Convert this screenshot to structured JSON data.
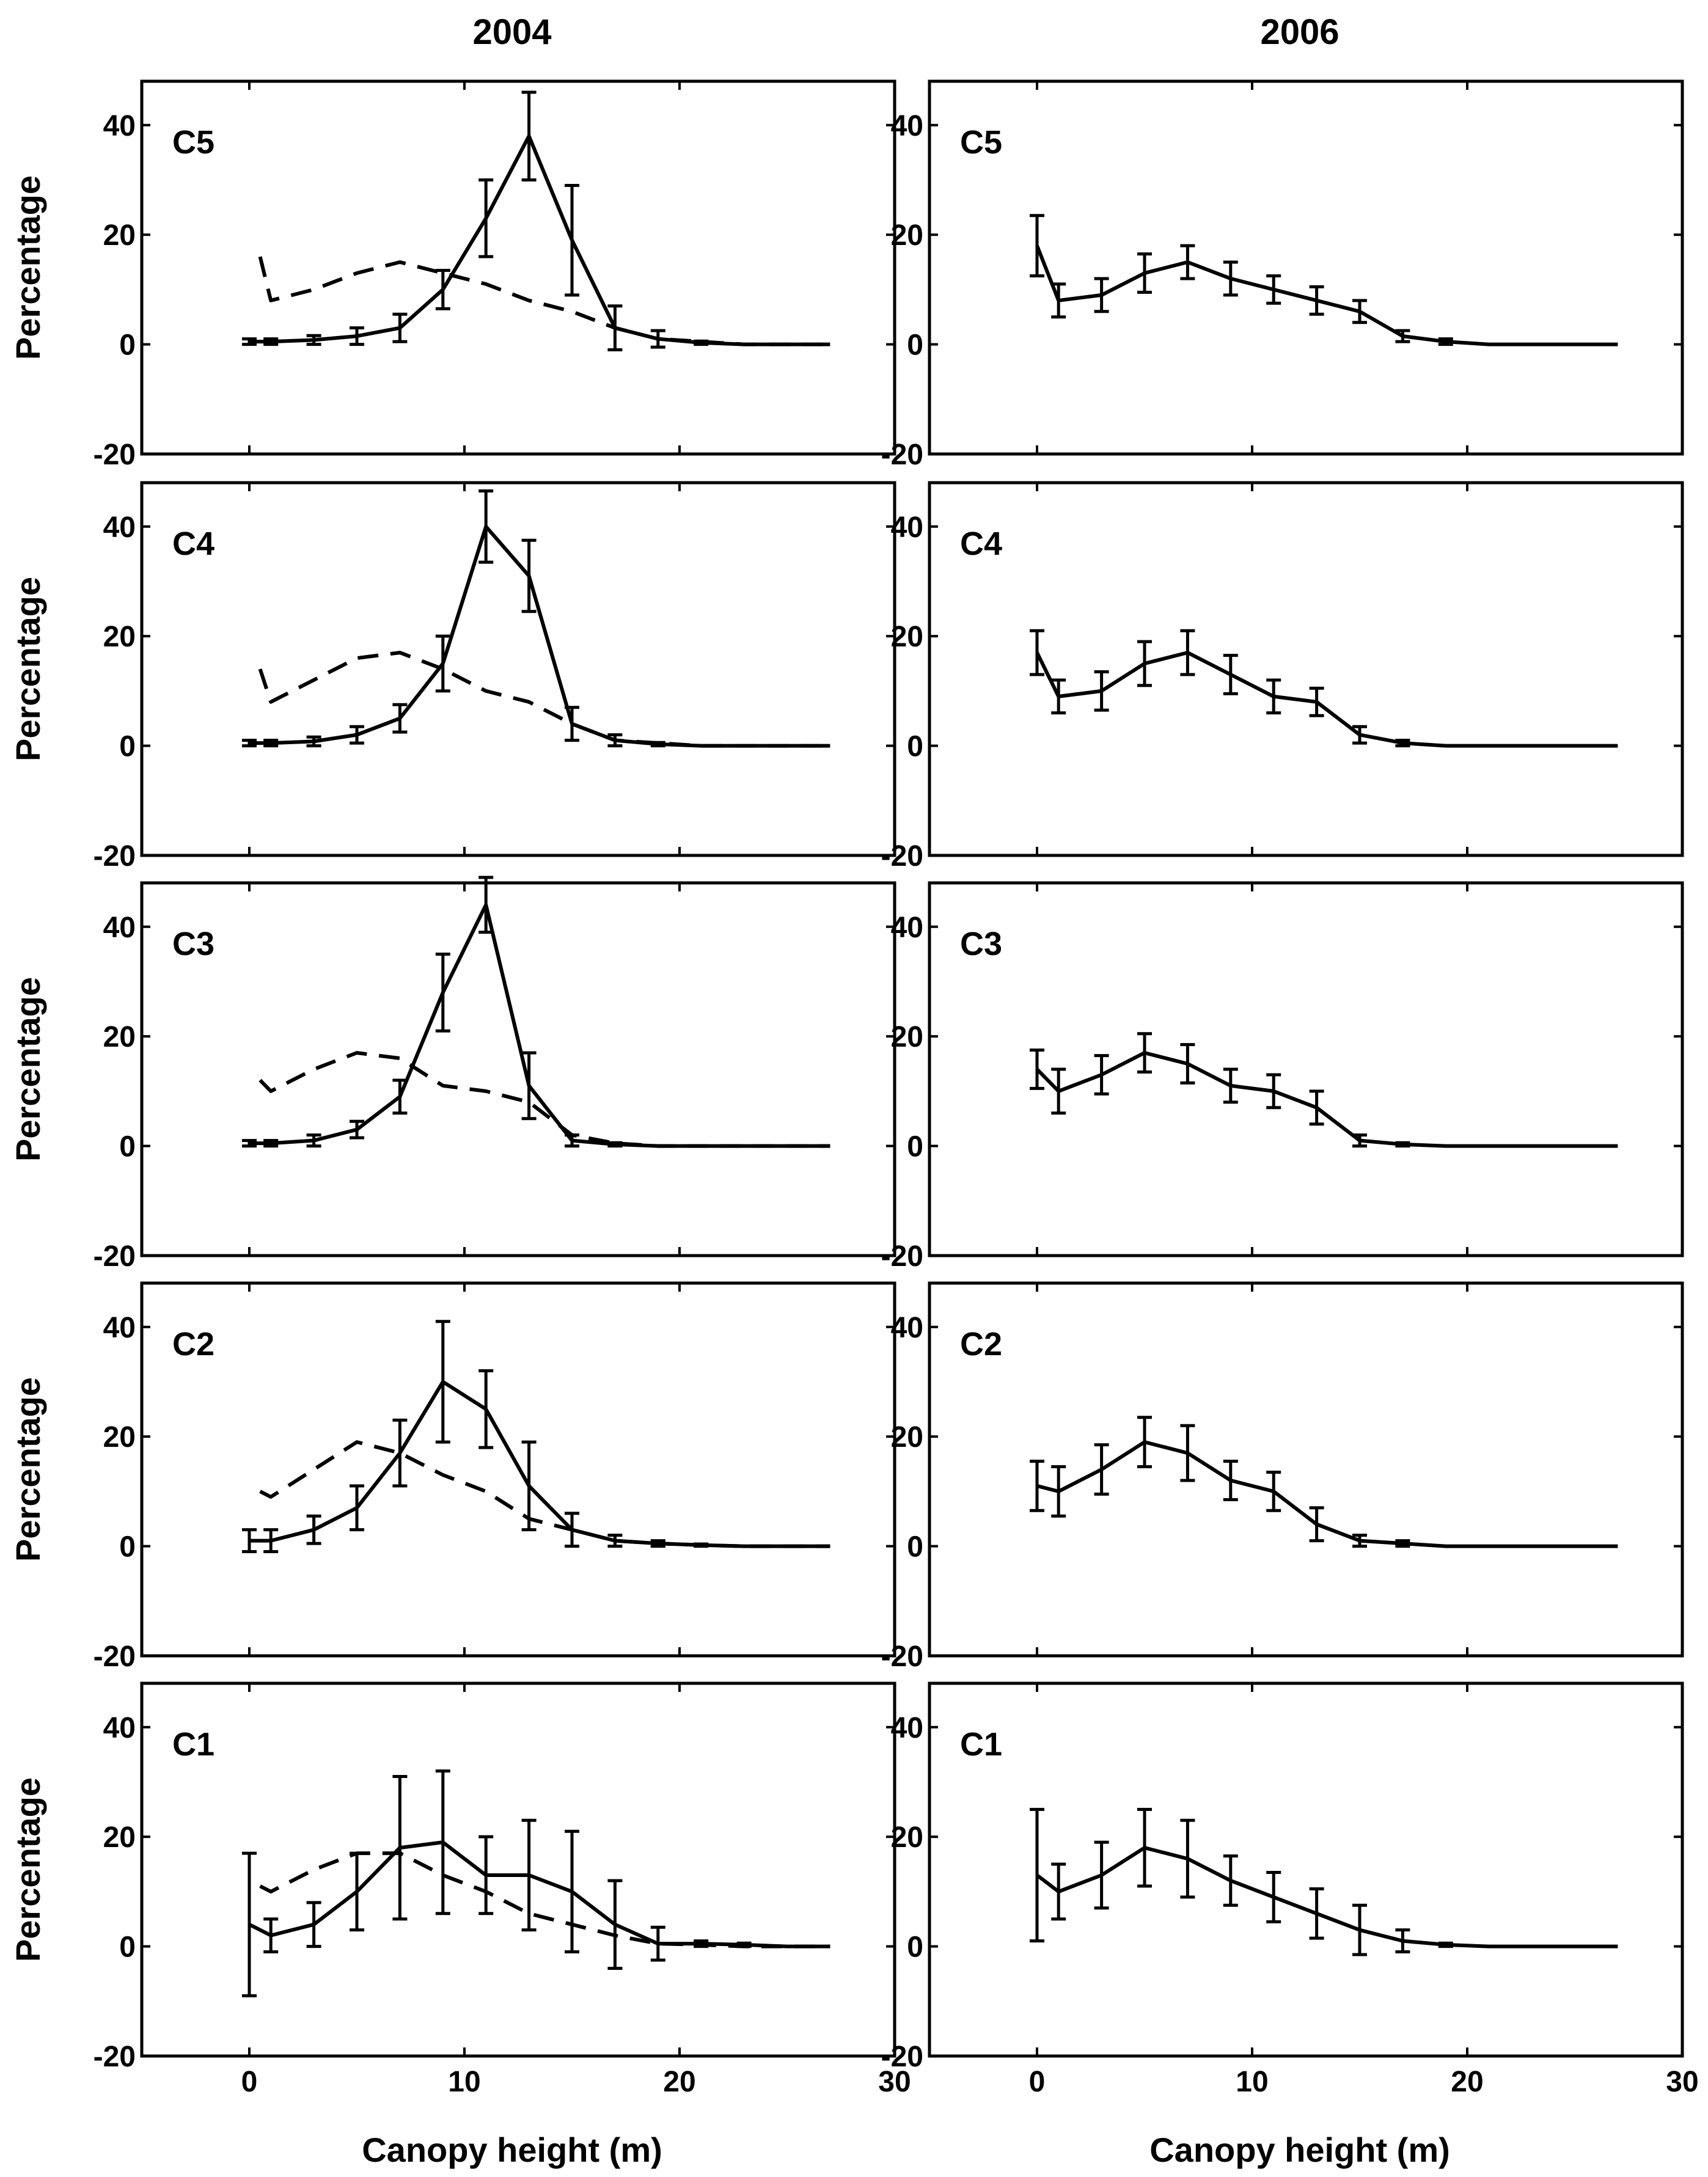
{
  "column_titles": [
    "2004",
    "2006"
  ],
  "panel_labels": [
    "C5",
    "C4",
    "C3",
    "C2",
    "C1"
  ],
  "xlabel": "Canopy height (m)",
  "ylabel": "Percentage",
  "axes": {
    "xlim": [
      -5,
      30
    ],
    "ylim": [
      -20,
      48
    ],
    "xticks": [
      0,
      10,
      20,
      30
    ],
    "yticks": [
      -20,
      0,
      20,
      40
    ],
    "grid": false
  },
  "chart_data": [
    {
      "type": "line",
      "panel": "C5",
      "column": "2004",
      "series": [
        {
          "style": "solid",
          "x": [
            0,
            1,
            3,
            5,
            7,
            9,
            11,
            13,
            15,
            17,
            19,
            21,
            23,
            25,
            27
          ],
          "y": [
            0.5,
            0.5,
            0.8,
            1.5,
            3,
            10,
            23,
            38,
            19,
            3,
            1,
            0.3,
            0,
            0,
            0
          ],
          "err": [
            0.5,
            0.5,
            0.8,
            1.5,
            2.5,
            3.5,
            7,
            8,
            10,
            4,
            1.5,
            0.3,
            0,
            0,
            0
          ]
        },
        {
          "style": "dashed",
          "x": [
            0.5,
            1,
            3,
            5,
            7,
            9,
            11,
            13,
            15,
            17,
            19,
            21,
            23,
            25,
            27
          ],
          "y": [
            16,
            8,
            10,
            13,
            15,
            13,
            11,
            8,
            6,
            3,
            1,
            0.5,
            0,
            0,
            0
          ]
        }
      ]
    },
    {
      "type": "line",
      "panel": "C5",
      "column": "2006",
      "series": [
        {
          "style": "solid",
          "x": [
            0,
            1,
            3,
            5,
            7,
            9,
            11,
            13,
            15,
            17,
            19,
            21,
            23,
            25,
            27
          ],
          "y": [
            18,
            8,
            9,
            13,
            15,
            12,
            10,
            8,
            6,
            1.5,
            0.5,
            0,
            0,
            0,
            0
          ],
          "err": [
            5.5,
            3,
            3,
            3.5,
            3,
            3,
            2.5,
            2.5,
            2,
            1,
            0.5,
            0,
            0,
            0,
            0
          ]
        }
      ]
    },
    {
      "type": "line",
      "panel": "C4",
      "column": "2004",
      "series": [
        {
          "style": "solid",
          "x": [
            0,
            1,
            3,
            5,
            7,
            9,
            11,
            13,
            15,
            17,
            19,
            21,
            23,
            25,
            27
          ],
          "y": [
            0.5,
            0.5,
            0.8,
            2,
            5,
            15,
            40,
            31,
            4,
            1,
            0.3,
            0,
            0,
            0,
            0
          ],
          "err": [
            0.5,
            0.5,
            0.8,
            1.5,
            2.5,
            5,
            6.5,
            6.5,
            3,
            1,
            0.3,
            0,
            0,
            0,
            0
          ]
        },
        {
          "style": "dashed",
          "x": [
            0.5,
            1,
            3,
            5,
            7,
            9,
            11,
            13,
            15,
            17,
            19,
            21,
            23,
            25,
            27
          ],
          "y": [
            14,
            8,
            12,
            16,
            17,
            14,
            10,
            8,
            4,
            1,
            0.5,
            0,
            0,
            0,
            0
          ]
        }
      ]
    },
    {
      "type": "line",
      "panel": "C4",
      "column": "2006",
      "series": [
        {
          "style": "solid",
          "x": [
            0,
            1,
            3,
            5,
            7,
            9,
            11,
            13,
            15,
            17,
            19,
            21,
            23,
            25,
            27
          ],
          "y": [
            17,
            9,
            10,
            15,
            17,
            13,
            9,
            8,
            2,
            0.5,
            0,
            0,
            0,
            0,
            0
          ],
          "err": [
            4,
            3,
            3.5,
            4,
            4,
            3.5,
            3,
            2.5,
            1.5,
            0.5,
            0,
            0,
            0,
            0,
            0
          ]
        }
      ]
    },
    {
      "type": "line",
      "panel": "C3",
      "column": "2004",
      "series": [
        {
          "style": "solid",
          "x": [
            0,
            1,
            3,
            5,
            7,
            9,
            11,
            13,
            15,
            17,
            19,
            21,
            23,
            25,
            27
          ],
          "y": [
            0.5,
            0.5,
            1,
            3,
            9,
            28,
            44,
            11,
            1,
            0.3,
            0,
            0,
            0,
            0,
            0
          ],
          "err": [
            0.5,
            0.5,
            1,
            1.5,
            3,
            7,
            5,
            6,
            1,
            0.3,
            0,
            0,
            0,
            0,
            0
          ]
        },
        {
          "style": "dashed",
          "x": [
            0.5,
            1,
            3,
            5,
            7,
            9,
            11,
            13,
            15,
            17,
            19,
            21,
            23,
            25,
            27
          ],
          "y": [
            12,
            10,
            14,
            17,
            16,
            11,
            10,
            8,
            2,
            0.5,
            0,
            0,
            0,
            0,
            0
          ]
        }
      ]
    },
    {
      "type": "line",
      "panel": "C3",
      "column": "2006",
      "series": [
        {
          "style": "solid",
          "x": [
            0,
            1,
            3,
            5,
            7,
            9,
            11,
            13,
            15,
            17,
            19,
            21,
            23,
            25,
            27
          ],
          "y": [
            14,
            10,
            13,
            17,
            15,
            11,
            10,
            7,
            1,
            0.3,
            0,
            0,
            0,
            0,
            0
          ],
          "err": [
            3.5,
            4,
            3.5,
            3.5,
            3.5,
            3,
            3,
            3,
            1,
            0.3,
            0,
            0,
            0,
            0,
            0
          ]
        }
      ]
    },
    {
      "type": "line",
      "panel": "C2",
      "column": "2004",
      "series": [
        {
          "style": "solid",
          "x": [
            0,
            1,
            3,
            5,
            7,
            9,
            11,
            13,
            15,
            17,
            19,
            21,
            23,
            25,
            27
          ],
          "y": [
            1,
            1,
            3,
            7,
            17,
            30,
            25,
            11,
            3,
            1,
            0.5,
            0.2,
            0,
            0,
            0
          ],
          "err": [
            2,
            2,
            2.5,
            4,
            6,
            11,
            7,
            8,
            3,
            1,
            0.5,
            0.2,
            0,
            0,
            0
          ]
        },
        {
          "style": "dashed",
          "x": [
            0.5,
            1,
            3,
            5,
            7,
            9,
            11,
            13,
            15,
            17,
            19,
            21,
            23,
            25,
            27
          ],
          "y": [
            10,
            9,
            14,
            19,
            17,
            13,
            10,
            5,
            3,
            1,
            0.5,
            0.2,
            0,
            0,
            0
          ]
        }
      ]
    },
    {
      "type": "line",
      "panel": "C2",
      "column": "2006",
      "series": [
        {
          "style": "solid",
          "x": [
            0,
            1,
            3,
            5,
            7,
            9,
            11,
            13,
            15,
            17,
            19,
            21,
            23,
            25,
            27
          ],
          "y": [
            11,
            10,
            14,
            19,
            17,
            12,
            10,
            4,
            1,
            0.5,
            0,
            0,
            0,
            0,
            0
          ],
          "err": [
            4.5,
            4.5,
            4.5,
            4.5,
            5,
            3.5,
            3.5,
            3,
            1,
            0.5,
            0,
            0,
            0,
            0,
            0
          ]
        }
      ]
    },
    {
      "type": "line",
      "panel": "C1",
      "column": "2004",
      "series": [
        {
          "style": "solid",
          "x": [
            0,
            1,
            3,
            5,
            7,
            9,
            11,
            13,
            15,
            17,
            19,
            21,
            23,
            25,
            27
          ],
          "y": [
            4,
            2,
            4,
            10,
            18,
            19,
            13,
            13,
            10,
            4,
            0.5,
            0.5,
            0.3,
            0,
            0
          ],
          "err": [
            13,
            3,
            4,
            7,
            13,
            13,
            7,
            10,
            11,
            8,
            3,
            0.5,
            0.3,
            0,
            0
          ]
        },
        {
          "style": "dashed",
          "x": [
            0.5,
            1,
            3,
            5,
            7,
            9,
            11,
            13,
            15,
            17,
            19,
            21,
            23,
            25,
            27
          ],
          "y": [
            11,
            10,
            14,
            17,
            17,
            13,
            10,
            6,
            4,
            2,
            0.5,
            0.3,
            0,
            0,
            0
          ]
        }
      ]
    },
    {
      "type": "line",
      "panel": "C1",
      "column": "2006",
      "series": [
        {
          "style": "solid",
          "x": [
            0,
            1,
            3,
            5,
            7,
            9,
            11,
            13,
            15,
            17,
            19,
            21,
            23,
            25,
            27
          ],
          "y": [
            13,
            10,
            13,
            18,
            16,
            12,
            9,
            6,
            3,
            1,
            0.3,
            0,
            0,
            0,
            0
          ],
          "err": [
            12,
            5,
            6,
            7,
            7,
            4.5,
            4.5,
            4.5,
            4.5,
            2,
            0.3,
            0,
            0,
            0,
            0
          ]
        }
      ]
    }
  ]
}
